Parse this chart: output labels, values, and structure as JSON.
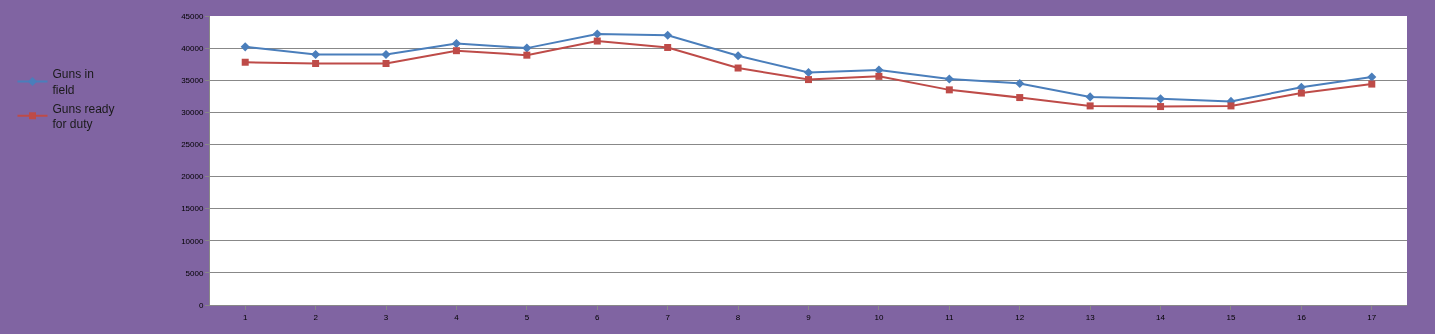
{
  "chart_data": {
    "type": "line",
    "categories": [
      "1",
      "2",
      "3",
      "4",
      "5",
      "6",
      "7",
      "8",
      "9",
      "10",
      "11",
      "12",
      "13",
      "14",
      "15",
      "16",
      "17"
    ],
    "series": [
      {
        "name": "Guns in field",
        "color": "#4a7ebb",
        "marker": "diamond",
        "values": [
          40200,
          39000,
          39000,
          40700,
          40000,
          42200,
          42000,
          38800,
          36200,
          36600,
          35200,
          34500,
          32400,
          32100,
          31700,
          33900,
          35500
        ]
      },
      {
        "name": "Guns ready for duty",
        "color": "#be4b48",
        "marker": "square",
        "values": [
          37800,
          37600,
          37600,
          39600,
          38900,
          41100,
          40100,
          36900,
          35100,
          35600,
          33500,
          32300,
          31000,
          30900,
          31000,
          33000,
          34400
        ]
      }
    ],
    "ylim": [
      0,
      45000
    ],
    "yticks": [
      0,
      5000,
      10000,
      15000,
      20000,
      25000,
      30000,
      35000,
      40000,
      45000
    ],
    "grid": "y",
    "legend": "left",
    "line_style": "solid"
  }
}
